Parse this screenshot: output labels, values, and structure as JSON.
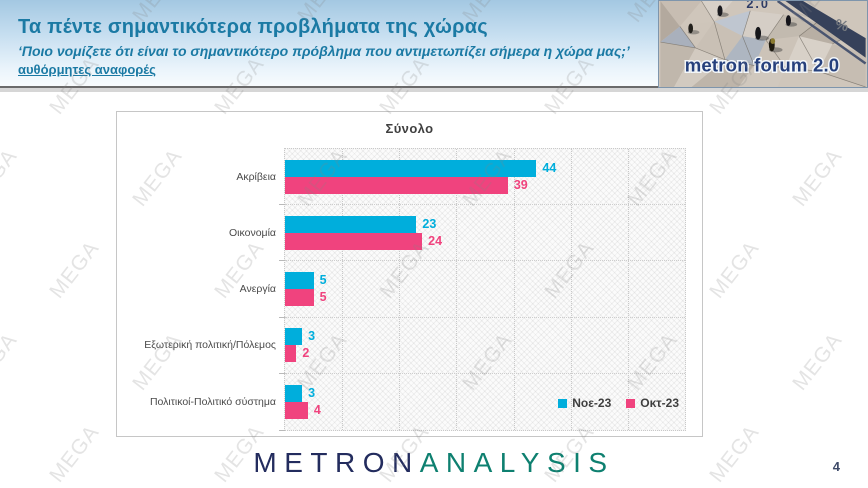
{
  "header": {
    "title": "Τα πέντε σημαντικότερα προβλήματα της χώρας",
    "subtitle": "‘Ποιο νομίζετε ότι είναι το σημαντικότερο πρόβλημα που αντιμετωπίζει σήμερα η χώρα μας;’",
    "note": "αυθόρμητες αναφορές",
    "logo": {
      "text": "metron forum 2.0",
      "percent": "%",
      "cut_text": "2.0"
    }
  },
  "chart_data": {
    "type": "bar",
    "orientation": "horizontal",
    "title": "Σύνολο",
    "categories": [
      "Ακρίβεια",
      "Οικονομία",
      "Ανεργία",
      "Εξωτερική πολιτική/Πόλεμος",
      "Πολιτικοί-Πολιτικό σύστημα"
    ],
    "series": [
      {
        "name": "Νοε-23",
        "color": "#00AEDC",
        "values": [
          44,
          23,
          5,
          3,
          3
        ]
      },
      {
        "name": "Οκτ-23",
        "color": "#F0437E",
        "values": [
          39,
          24,
          5,
          2,
          4
        ]
      }
    ],
    "xlim": [
      0,
      70
    ],
    "gridline_step": 10,
    "grid": true,
    "legend_position": "bottom-right",
    "value_labels": true
  },
  "footer": {
    "brand_primary": "METRON",
    "brand_secondary": "ANALYSIS",
    "page_number": "4"
  },
  "watermark": {
    "text": "MEGA"
  },
  "colors": {
    "header_text": "#1B7AA4",
    "bar_blue": "#00AEDC",
    "bar_pink": "#F0437E",
    "brand_navy": "#232C5E",
    "brand_teal": "#0E8070",
    "watermark_gray": "#8A8A8A"
  }
}
